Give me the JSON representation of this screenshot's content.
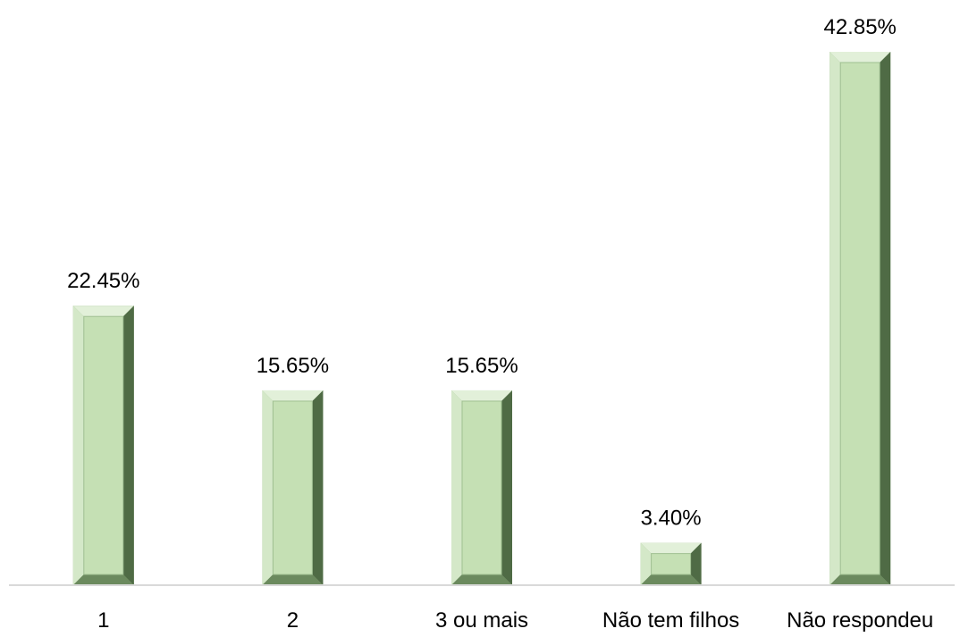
{
  "chart_data": {
    "type": "bar",
    "categories": [
      "1",
      "2",
      "3 ou mais",
      "Não tem filhos",
      "Não respondeu"
    ],
    "values": [
      22.45,
      15.65,
      15.65,
      3.4,
      42.85
    ],
    "data_labels": [
      "22.45%",
      "15.65%",
      "15.65%",
      "3.40%",
      "42.85%"
    ],
    "title": "",
    "xlabel": "",
    "ylabel": "",
    "ylim": [
      0,
      42.85
    ],
    "grid": false,
    "legend": "none",
    "colors": {
      "bar_face": "#c5e0b4",
      "bar_light": "#e2f0d9",
      "bar_dark": "#4f6b45",
      "bar_mid": "#8fae80",
      "axis": "#d9d9d9",
      "text": "#000000"
    }
  }
}
